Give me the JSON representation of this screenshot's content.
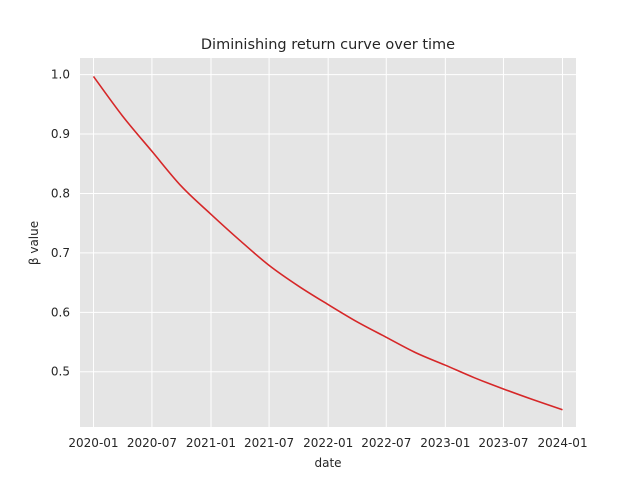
{
  "chart_data": {
    "type": "line",
    "title": "Diminishing return curve over time",
    "xlabel": "date",
    "ylabel": "β value",
    "x_ticks": [
      "2020-01",
      "2020-07",
      "2021-01",
      "2021-07",
      "2022-01",
      "2022-07",
      "2023-01",
      "2023-07",
      "2024-01"
    ],
    "y_ticks": [
      "0.5",
      "0.6",
      "0.7",
      "0.8",
      "0.9",
      "1.0"
    ],
    "xlim": [
      "2019-11-20",
      "2024-02-12"
    ],
    "ylim": [
      0.407,
      1.028
    ],
    "grid": true,
    "background": "#e5e5e5",
    "grid_color": "#ffffff",
    "series": [
      {
        "color": "#d62728",
        "x": [
          "2020-01-01",
          "2020-04-01",
          "2020-07-01",
          "2020-10-01",
          "2021-01-01",
          "2021-04-01",
          "2021-07-01",
          "2021-10-01",
          "2022-01-01",
          "2022-04-01",
          "2022-07-01",
          "2022-10-01",
          "2023-01-01",
          "2023-04-01",
          "2023-07-01",
          "2023-10-01",
          "2024-01-01"
        ],
        "y": [
          0.997,
          0.93,
          0.871,
          0.812,
          0.765,
          0.721,
          0.679,
          0.644,
          0.613,
          0.584,
          0.558,
          0.532,
          0.511,
          0.49,
          0.471,
          0.453,
          0.436
        ]
      }
    ]
  }
}
